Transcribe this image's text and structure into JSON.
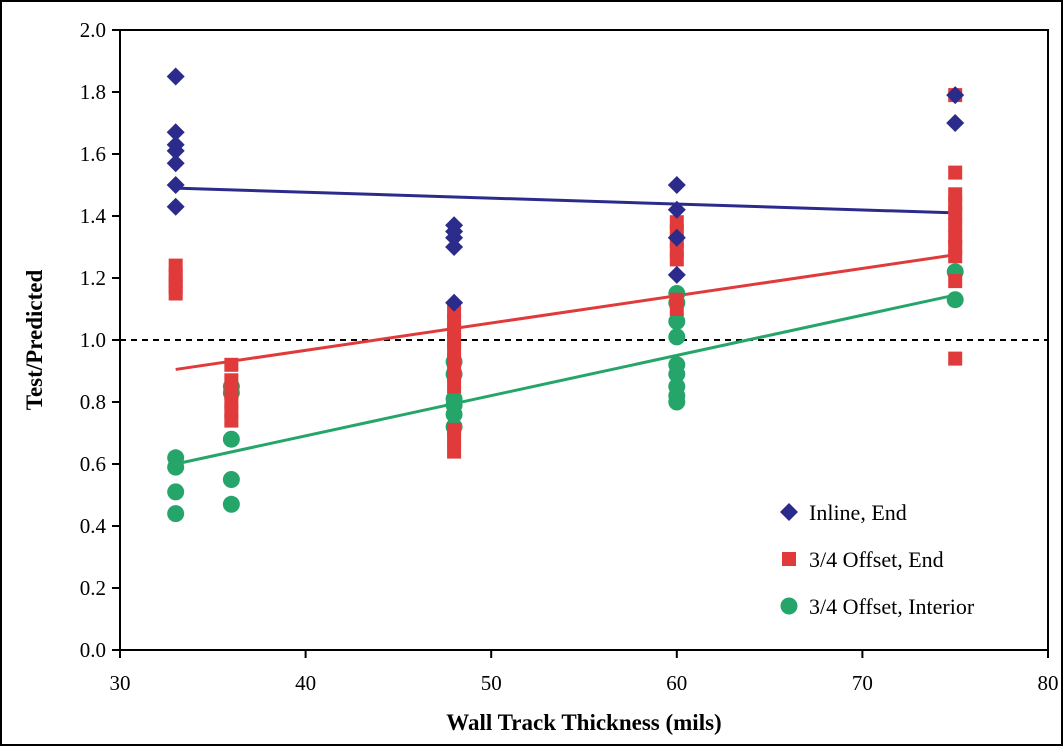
{
  "chart_data": {
    "type": "scatter",
    "xlabel": "Wall Track Thickness (mils)",
    "ylabel": "Test/Predicted",
    "xlim": [
      30,
      80
    ],
    "ylim": [
      0.0,
      2.0
    ],
    "xticks": [
      30,
      40,
      50,
      60,
      70,
      80
    ],
    "yticks": [
      0.0,
      0.2,
      0.4,
      0.6,
      0.8,
      1.0,
      1.2,
      1.4,
      1.6,
      1.8,
      2.0
    ],
    "ytick_labels": [
      "0.0",
      "0.2",
      "0.4",
      "0.6",
      "0.8",
      "1.0",
      "1.2",
      "1.4",
      "1.6",
      "1.8",
      "2.0"
    ],
    "grid": false,
    "legend_position": "bottom-right",
    "reference_line": {
      "y": 1.0,
      "style": "dashed",
      "color": "#000000"
    },
    "series": [
      {
        "name": "Inline, End",
        "marker": "diamond",
        "color": "#2b2b8c",
        "points": [
          [
            33,
            1.85
          ],
          [
            33,
            1.67
          ],
          [
            33,
            1.63
          ],
          [
            33,
            1.61
          ],
          [
            33,
            1.57
          ],
          [
            33,
            1.5
          ],
          [
            33,
            1.43
          ],
          [
            48,
            1.37
          ],
          [
            48,
            1.35
          ],
          [
            48,
            1.33
          ],
          [
            48,
            1.3
          ],
          [
            48,
            1.12
          ],
          [
            60,
            1.5
          ],
          [
            60,
            1.42
          ],
          [
            60,
            1.33
          ],
          [
            60,
            1.21
          ],
          [
            75,
            1.79
          ],
          [
            75,
            1.7
          ]
        ],
        "trendline": {
          "x": [
            33,
            75
          ],
          "y": [
            1.49,
            1.41
          ]
        }
      },
      {
        "name": "3/4 Offset, End",
        "marker": "square",
        "color": "#e03a3a",
        "points": [
          [
            33,
            1.24
          ],
          [
            33,
            1.21
          ],
          [
            33,
            1.19
          ],
          [
            33,
            1.17
          ],
          [
            33,
            1.15
          ],
          [
            36,
            0.92
          ],
          [
            36,
            0.87
          ],
          [
            36,
            0.83
          ],
          [
            36,
            0.8
          ],
          [
            36,
            0.77
          ],
          [
            36,
            0.74
          ],
          [
            48,
            1.09
          ],
          [
            48,
            1.06
          ],
          [
            48,
            1.03
          ],
          [
            48,
            1.0
          ],
          [
            48,
            0.97
          ],
          [
            48,
            0.93
          ],
          [
            48,
            0.89
          ],
          [
            48,
            0.85
          ],
          [
            48,
            0.71
          ],
          [
            48,
            0.68
          ],
          [
            48,
            0.64
          ],
          [
            60,
            1.38
          ],
          [
            60,
            1.35
          ],
          [
            60,
            1.32
          ],
          [
            60,
            1.29
          ],
          [
            60,
            1.26
          ],
          [
            60,
            1.13
          ],
          [
            60,
            1.1
          ],
          [
            75,
            1.79
          ],
          [
            75,
            1.54
          ],
          [
            75,
            1.47
          ],
          [
            75,
            1.44
          ],
          [
            75,
            1.41
          ],
          [
            75,
            1.37
          ],
          [
            75,
            1.33
          ],
          [
            75,
            1.3
          ],
          [
            75,
            1.27
          ],
          [
            75,
            1.19
          ],
          [
            75,
            0.94
          ]
        ],
        "trendline": {
          "x": [
            33,
            75
          ],
          "y": [
            0.905,
            1.275
          ]
        }
      },
      {
        "name": "3/4 Offset, Interior",
        "marker": "circle",
        "color": "#25a56a",
        "points": [
          [
            33,
            0.62
          ],
          [
            33,
            0.59
          ],
          [
            33,
            0.51
          ],
          [
            33,
            0.44
          ],
          [
            36,
            0.85
          ],
          [
            36,
            0.83
          ],
          [
            36,
            0.68
          ],
          [
            36,
            0.55
          ],
          [
            36,
            0.47
          ],
          [
            48,
            0.93
          ],
          [
            48,
            0.89
          ],
          [
            48,
            0.81
          ],
          [
            48,
            0.79
          ],
          [
            48,
            0.76
          ],
          [
            48,
            0.72
          ],
          [
            60,
            1.15
          ],
          [
            60,
            1.12
          ],
          [
            60,
            1.06
          ],
          [
            60,
            1.01
          ],
          [
            60,
            0.92
          ],
          [
            60,
            0.89
          ],
          [
            60,
            0.85
          ],
          [
            60,
            0.82
          ],
          [
            60,
            0.8
          ],
          [
            75,
            1.22
          ],
          [
            75,
            1.13
          ]
        ],
        "trendline": {
          "x": [
            33,
            75
          ],
          "y": [
            0.6,
            1.145
          ]
        }
      }
    ]
  }
}
